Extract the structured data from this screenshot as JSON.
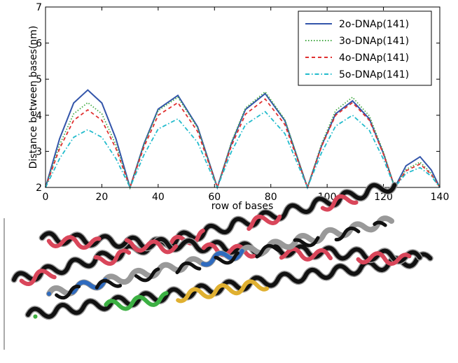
{
  "chart_data": {
    "type": "line",
    "y_label": "Distance between bases(nm)",
    "x_label": "row of bases",
    "x": [
      0,
      5,
      10,
      15,
      20,
      25,
      30,
      35,
      40,
      47,
      54,
      61,
      66,
      71,
      78,
      85,
      93,
      98,
      103,
      109,
      115,
      120,
      124,
      128,
      133,
      137,
      140
    ],
    "xlim": [
      0,
      140
    ],
    "xticks": [
      0,
      20,
      40,
      60,
      80,
      100,
      120,
      140
    ],
    "ylim": [
      2,
      7
    ],
    "yticks": [
      2,
      3,
      4,
      5,
      6,
      7
    ],
    "legend": "upper right",
    "series": [
      {
        "name": "2o-DNAp(141)",
        "color": "#3355aa",
        "style": "solid",
        "values": [
          2,
          3.35,
          4.34,
          4.7,
          4.34,
          3.35,
          2,
          3.22,
          4.17,
          4.55,
          3.68,
          2,
          3.22,
          4.16,
          4.6,
          3.85,
          2,
          3.15,
          4.04,
          4.4,
          3.9,
          2.94,
          2,
          2.6,
          2.85,
          2.48,
          2
        ]
      },
      {
        "name": "3o-DNAp(141)",
        "color": "#44aa44",
        "style": "dotted",
        "values": [
          2,
          3.18,
          4.04,
          4.35,
          4.04,
          3.18,
          2,
          3.2,
          4.13,
          4.5,
          3.65,
          2,
          3.25,
          4.2,
          4.65,
          3.88,
          2,
          3.2,
          4.13,
          4.5,
          3.98,
          2.98,
          2,
          2.5,
          2.7,
          2.39,
          2
        ]
      },
      {
        "name": "4o-DNAp(141)",
        "color": "#e03030",
        "style": "dashed",
        "values": [
          2,
          3.08,
          3.86,
          4.15,
          3.86,
          3.08,
          2,
          3.13,
          4,
          4.35,
          3.55,
          2,
          3.15,
          4.03,
          4.45,
          3.74,
          2,
          3.13,
          4,
          4.35,
          3.86,
          2.92,
          2,
          2.46,
          2.65,
          2.36,
          2
        ]
      },
      {
        "name": "5o-DNAp(141)",
        "color": "#22bbcc",
        "style": "dashdot",
        "values": [
          2,
          2.8,
          3.39,
          3.6,
          3.39,
          2.8,
          2,
          2.91,
          3.62,
          3.9,
          3.25,
          2,
          2.99,
          3.74,
          4.1,
          3.49,
          2,
          2.96,
          3.7,
          4,
          3.58,
          2.78,
          2,
          2.39,
          2.55,
          2.31,
          2
        ]
      }
    ]
  }
}
